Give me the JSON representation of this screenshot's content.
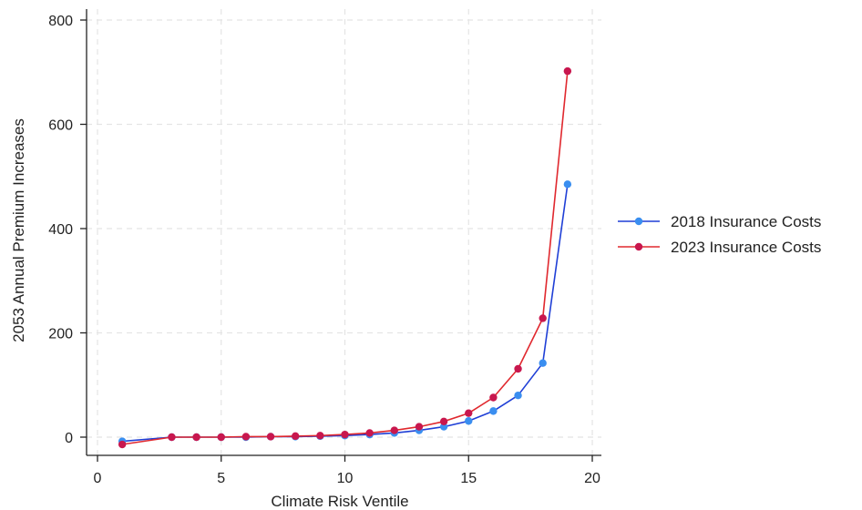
{
  "chart_data": {
    "type": "line",
    "title": "",
    "xlabel": "Climate Risk Ventile",
    "ylabel": "2053 Annual Premium Increases",
    "xlim": [
      0,
      20
    ],
    "ylim": [
      -30,
      820
    ],
    "xticks": [
      0,
      5,
      10,
      15,
      20
    ],
    "yticks": [
      0,
      200,
      400,
      600,
      800
    ],
    "grid": true,
    "legend_position": "right",
    "series": [
      {
        "name": "2018 Insurance Costs",
        "color": "#1f3fd6",
        "marker_color": "#3a8ef0",
        "x": [
          1,
          3,
          4,
          5,
          6,
          7,
          8,
          9,
          10,
          11,
          12,
          13,
          14,
          15,
          16,
          17,
          18,
          19
        ],
        "y": [
          -8,
          0,
          0,
          0,
          0,
          1,
          1,
          2,
          3,
          5,
          8,
          13,
          20,
          31,
          50,
          80,
          142,
          485
        ]
      },
      {
        "name": "2023 Insurance Costs",
        "color": "#e0282e",
        "marker_color": "#c8174e",
        "x": [
          1,
          3,
          4,
          5,
          6,
          7,
          8,
          9,
          10,
          11,
          12,
          13,
          14,
          15,
          16,
          17,
          18,
          19
        ],
        "y": [
          -14,
          0,
          0,
          0,
          1,
          1,
          2,
          3,
          5,
          8,
          13,
          20,
          30,
          46,
          76,
          131,
          228,
          702
        ]
      }
    ]
  }
}
